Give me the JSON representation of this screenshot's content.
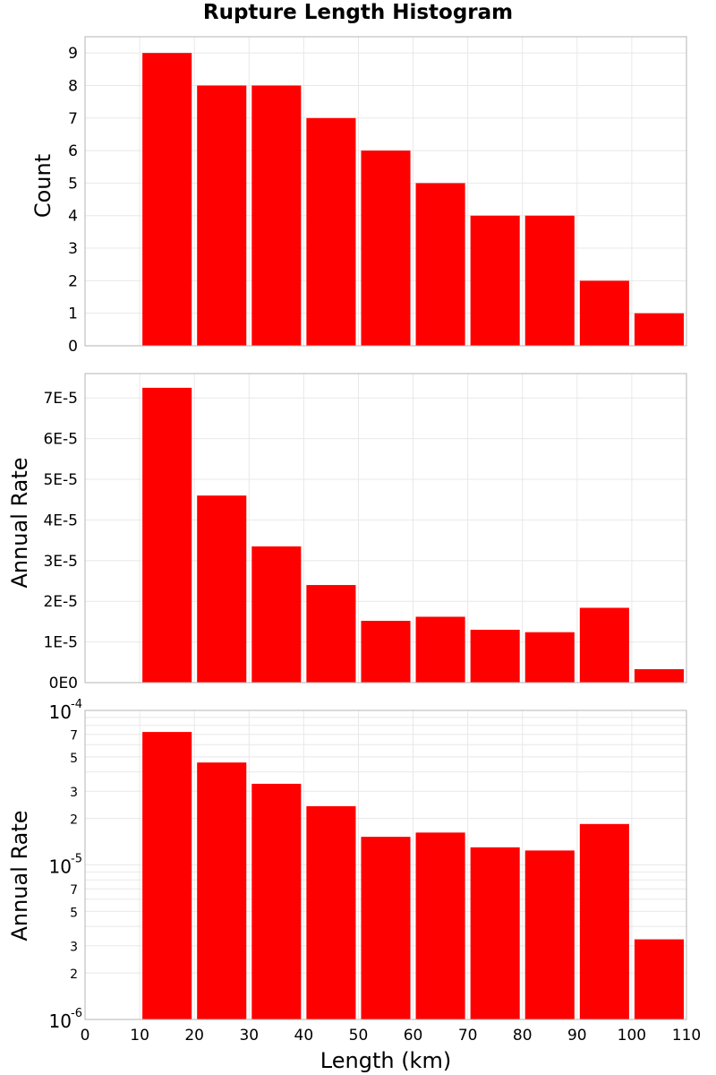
{
  "chart_data": {
    "type": "bar",
    "title": "Rupture Length Histogram",
    "xlabel": "Length (km)",
    "xlim": [
      0,
      110
    ],
    "x_ticks": [
      "0",
      "10",
      "20",
      "30",
      "40",
      "50",
      "60",
      "70",
      "80",
      "90",
      "100",
      "110"
    ],
    "bin_edges": [
      10,
      20,
      30,
      40,
      50,
      60,
      70,
      80,
      90,
      100,
      110
    ],
    "colors": {
      "bar": "#ff0000",
      "grid": "#e8e8e8",
      "frame": "#b4b4b4"
    },
    "panels": [
      {
        "id": "count",
        "ylabel": "Count",
        "scale": "linear",
        "ylim": [
          0,
          9.5
        ],
        "y_ticks": [
          {
            "v": 0,
            "label": "0"
          },
          {
            "v": 1,
            "label": "1"
          },
          {
            "v": 2,
            "label": "2"
          },
          {
            "v": 3,
            "label": "3"
          },
          {
            "v": 4,
            "label": "4"
          },
          {
            "v": 5,
            "label": "5"
          },
          {
            "v": 6,
            "label": "6"
          },
          {
            "v": 7,
            "label": "7"
          },
          {
            "v": 8,
            "label": "8"
          },
          {
            "v": 9,
            "label": "9"
          }
        ],
        "values": [
          9,
          8,
          8,
          7,
          6,
          5,
          4,
          4,
          2,
          1
        ]
      },
      {
        "id": "annual-rate-linear",
        "ylabel": "Annual Rate",
        "scale": "linear",
        "ylim": [
          0,
          7.6e-05
        ],
        "y_ticks": [
          {
            "v": 0,
            "label": "0E0"
          },
          {
            "v": 1e-05,
            "label": "1E-5"
          },
          {
            "v": 2e-05,
            "label": "2E-5"
          },
          {
            "v": 3e-05,
            "label": "3E-5"
          },
          {
            "v": 4e-05,
            "label": "4E-5"
          },
          {
            "v": 5e-05,
            "label": "5E-5"
          },
          {
            "v": 6e-05,
            "label": "6E-5"
          },
          {
            "v": 7e-05,
            "label": "7E-5"
          }
        ],
        "values": [
          7.25e-05,
          4.6e-05,
          3.35e-05,
          2.4e-05,
          1.52e-05,
          1.62e-05,
          1.3e-05,
          1.24e-05,
          1.84e-05,
          3.3e-06
        ]
      },
      {
        "id": "annual-rate-log",
        "ylabel": "Annual Rate",
        "scale": "log",
        "ylim": [
          1e-06,
          0.0001
        ],
        "y_ticks": [
          {
            "v": 0.0001,
            "base": "10",
            "exp": "-4"
          },
          {
            "v": 7e-05,
            "label": "7"
          },
          {
            "v": 5e-05,
            "label": "5"
          },
          {
            "v": 3e-05,
            "label": "3"
          },
          {
            "v": 2e-05,
            "label": "2"
          },
          {
            "v": 1e-05,
            "base": "10",
            "exp": "-5"
          },
          {
            "v": 7e-06,
            "label": "7"
          },
          {
            "v": 5e-06,
            "label": "5"
          },
          {
            "v": 3e-06,
            "label": "3"
          },
          {
            "v": 2e-06,
            "label": "2"
          },
          {
            "v": 1e-06,
            "base": "10",
            "exp": "-6"
          }
        ],
        "values": [
          7.25e-05,
          4.6e-05,
          3.35e-05,
          2.4e-05,
          1.52e-05,
          1.62e-05,
          1.3e-05,
          1.24e-05,
          1.84e-05,
          3.3e-06
        ]
      }
    ]
  }
}
